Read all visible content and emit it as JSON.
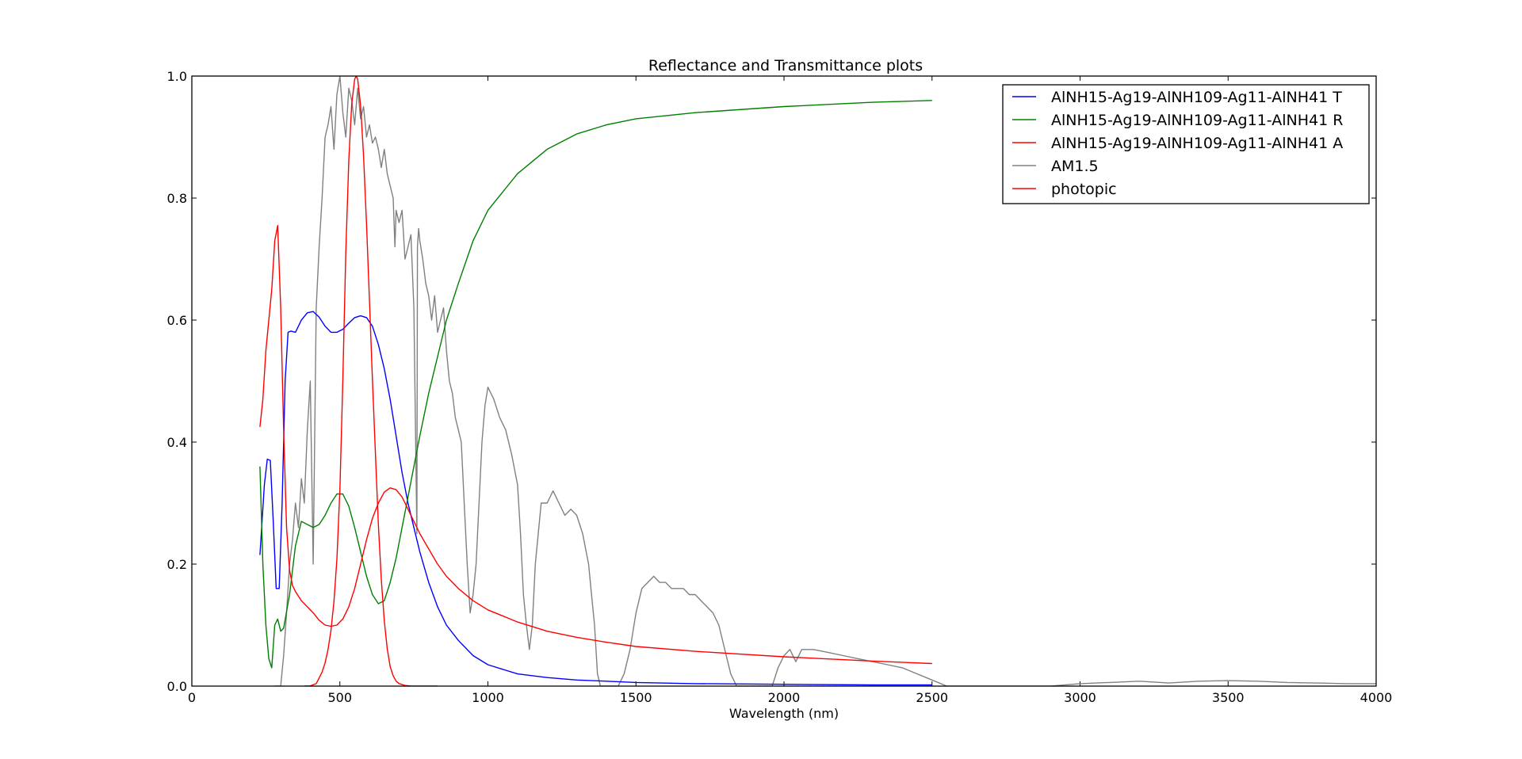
{
  "chart_data": {
    "type": "line",
    "title": "Reflectance and Transmittance plots",
    "xlabel": "Wavelength (nm)",
    "ylabel": "",
    "xlim": [
      0,
      4000
    ],
    "ylim": [
      0,
      1
    ],
    "xticks": [
      "0",
      "500",
      "1000",
      "1500",
      "2000",
      "2500",
      "3000",
      "3500",
      "4000"
    ],
    "yticks": [
      "0.0",
      "0.2",
      "0.4",
      "0.6",
      "0.8",
      "1.0"
    ],
    "grid": false,
    "legend_position": "top-right",
    "series": [
      {
        "name": "AlNH15-Ag19-AlNH109-Ag11-AlNH41 T",
        "color": "#0000ff",
        "x": [
          230,
          245,
          255,
          265,
          275,
          285,
          295,
          305,
          315,
          325,
          335,
          350,
          370,
          390,
          410,
          430,
          450,
          470,
          490,
          510,
          530,
          550,
          570,
          590,
          610,
          630,
          650,
          670,
          690,
          710,
          730,
          750,
          770,
          800,
          830,
          860,
          900,
          950,
          1000,
          1100,
          1200,
          1300,
          1400,
          1500,
          1700,
          2000,
          2300,
          2500
        ],
        "y": [
          0.215,
          0.33,
          0.372,
          0.37,
          0.27,
          0.16,
          0.16,
          0.3,
          0.5,
          0.58,
          0.582,
          0.58,
          0.6,
          0.612,
          0.614,
          0.605,
          0.59,
          0.58,
          0.58,
          0.585,
          0.595,
          0.604,
          0.607,
          0.604,
          0.59,
          0.56,
          0.52,
          0.47,
          0.41,
          0.35,
          0.3,
          0.26,
          0.22,
          0.17,
          0.13,
          0.1,
          0.075,
          0.05,
          0.035,
          0.02,
          0.014,
          0.01,
          0.008,
          0.006,
          0.004,
          0.003,
          0.002,
          0.002
        ]
      },
      {
        "name": "AlNH15-Ag19-AlNH109-Ag11-AlNH41 R",
        "color": "#008000",
        "x": [
          230,
          240,
          250,
          260,
          270,
          280,
          290,
          300,
          310,
          330,
          350,
          370,
          390,
          410,
          430,
          450,
          470,
          490,
          510,
          530,
          550,
          570,
          590,
          610,
          630,
          650,
          670,
          690,
          710,
          730,
          750,
          770,
          800,
          830,
          860,
          900,
          950,
          1000,
          1100,
          1200,
          1300,
          1400,
          1500,
          1700,
          2000,
          2300,
          2500
        ],
        "y": [
          0.36,
          0.2,
          0.1,
          0.045,
          0.03,
          0.1,
          0.11,
          0.09,
          0.095,
          0.15,
          0.23,
          0.27,
          0.265,
          0.26,
          0.265,
          0.28,
          0.3,
          0.315,
          0.315,
          0.295,
          0.26,
          0.22,
          0.18,
          0.15,
          0.135,
          0.14,
          0.17,
          0.21,
          0.26,
          0.31,
          0.36,
          0.41,
          0.48,
          0.54,
          0.6,
          0.66,
          0.73,
          0.78,
          0.84,
          0.88,
          0.905,
          0.92,
          0.93,
          0.94,
          0.95,
          0.957,
          0.96
        ]
      },
      {
        "name": "AlNH15-Ag19-AlNH109-Ag11-AlNH41 A",
        "color": "#ff0000",
        "x": [
          230,
          240,
          250,
          260,
          270,
          280,
          290,
          300,
          310,
          320,
          330,
          340,
          350,
          370,
          390,
          410,
          430,
          450,
          470,
          490,
          510,
          530,
          550,
          570,
          590,
          610,
          630,
          650,
          670,
          690,
          710,
          730,
          750,
          770,
          800,
          830,
          860,
          900,
          950,
          1000,
          1100,
          1200,
          1300,
          1400,
          1500,
          1700,
          2000,
          2300,
          2500
        ],
        "y": [
          0.425,
          0.47,
          0.55,
          0.6,
          0.65,
          0.73,
          0.755,
          0.62,
          0.42,
          0.26,
          0.19,
          0.165,
          0.155,
          0.14,
          0.13,
          0.12,
          0.108,
          0.1,
          0.098,
          0.1,
          0.11,
          0.13,
          0.16,
          0.2,
          0.24,
          0.275,
          0.3,
          0.318,
          0.325,
          0.322,
          0.31,
          0.29,
          0.27,
          0.25,
          0.225,
          0.2,
          0.18,
          0.16,
          0.14,
          0.125,
          0.105,
          0.09,
          0.08,
          0.072,
          0.065,
          0.057,
          0.048,
          0.041,
          0.037
        ]
      },
      {
        "name": "AM1.5",
        "color": "#808080",
        "x": [
          280,
          300,
          310,
          320,
          330,
          340,
          350,
          360,
          370,
          380,
          390,
          400,
          410,
          420,
          430,
          440,
          450,
          460,
          470,
          480,
          490,
          500,
          510,
          520,
          530,
          540,
          550,
          560,
          570,
          580,
          590,
          600,
          610,
          620,
          630,
          640,
          650,
          660,
          670,
          680,
          686,
          690,
          700,
          710,
          720,
          730,
          740,
          750,
          760,
          762,
          766,
          770,
          780,
          790,
          800,
          810,
          820,
          830,
          840,
          850,
          860,
          870,
          880,
          890,
          900,
          910,
          920,
          930,
          940,
          950,
          960,
          970,
          980,
          990,
          1000,
          1020,
          1040,
          1060,
          1080,
          1100,
          1110,
          1120,
          1130,
          1140,
          1150,
          1160,
          1170,
          1180,
          1200,
          1220,
          1240,
          1260,
          1280,
          1300,
          1320,
          1340,
          1350,
          1360,
          1370,
          1380,
          1400,
          1420,
          1440,
          1460,
          1480,
          1500,
          1520,
          1540,
          1560,
          1580,
          1600,
          1620,
          1640,
          1660,
          1680,
          1700,
          1720,
          1740,
          1760,
          1780,
          1800,
          1820,
          1840,
          1860,
          1880,
          1900,
          1920,
          1940,
          1960,
          1980,
          2000,
          2020,
          2040,
          2060,
          2080,
          2100,
          2150,
          2200,
          2250,
          2300,
          2350,
          2400,
          2450,
          2500,
          2550,
          2600,
          2700,
          2800,
          2900,
          3000,
          3100,
          3200,
          3300,
          3400,
          3500,
          3600,
          3700,
          3800,
          3900,
          4000
        ],
        "y": [
          0.0,
          0.0,
          0.05,
          0.12,
          0.2,
          0.24,
          0.3,
          0.26,
          0.34,
          0.3,
          0.42,
          0.5,
          0.2,
          0.62,
          0.72,
          0.8,
          0.9,
          0.92,
          0.95,
          0.88,
          0.97,
          1.0,
          0.94,
          0.9,
          0.98,
          0.96,
          0.92,
          0.98,
          0.93,
          0.95,
          0.9,
          0.92,
          0.89,
          0.9,
          0.88,
          0.85,
          0.88,
          0.84,
          0.82,
          0.8,
          0.72,
          0.78,
          0.76,
          0.78,
          0.7,
          0.72,
          0.74,
          0.62,
          0.25,
          0.72,
          0.75,
          0.73,
          0.7,
          0.66,
          0.64,
          0.6,
          0.64,
          0.58,
          0.6,
          0.62,
          0.55,
          0.5,
          0.48,
          0.44,
          0.42,
          0.4,
          0.3,
          0.2,
          0.12,
          0.15,
          0.2,
          0.3,
          0.4,
          0.46,
          0.49,
          0.47,
          0.44,
          0.42,
          0.38,
          0.33,
          0.25,
          0.15,
          0.1,
          0.06,
          0.1,
          0.2,
          0.25,
          0.3,
          0.3,
          0.32,
          0.3,
          0.28,
          0.29,
          0.28,
          0.25,
          0.2,
          0.15,
          0.1,
          0.02,
          0.0,
          0.0,
          0.0,
          0.0,
          0.02,
          0.06,
          0.12,
          0.16,
          0.17,
          0.18,
          0.17,
          0.17,
          0.16,
          0.16,
          0.16,
          0.15,
          0.15,
          0.14,
          0.13,
          0.12,
          0.1,
          0.06,
          0.02,
          0.0,
          0.0,
          0.0,
          0.0,
          0.0,
          0.0,
          0.0,
          0.03,
          0.05,
          0.06,
          0.04,
          0.06,
          0.06,
          0.06,
          0.055,
          0.05,
          0.045,
          0.04,
          0.035,
          0.03,
          0.02,
          0.01,
          0.0,
          0.0,
          0.0,
          0.0,
          0.0,
          0.004,
          0.006,
          0.008,
          0.005,
          0.008,
          0.009,
          0.008,
          0.006,
          0.005,
          0.004,
          0.004
        ]
      },
      {
        "name": "photopic",
        "color": "#ff0000",
        "x": [
          380,
          400,
          420,
          440,
          450,
          460,
          470,
          480,
          490,
          500,
          510,
          520,
          530,
          540,
          550,
          555,
          560,
          570,
          580,
          590,
          600,
          610,
          620,
          630,
          640,
          650,
          660,
          670,
          680,
          690,
          700,
          720,
          740,
          760,
          780,
          800,
          830
        ],
        "y": [
          0.0,
          0.0004,
          0.004,
          0.023,
          0.038,
          0.06,
          0.091,
          0.139,
          0.208,
          0.323,
          0.503,
          0.71,
          0.862,
          0.954,
          0.995,
          1.0,
          0.995,
          0.952,
          0.87,
          0.757,
          0.631,
          0.503,
          0.381,
          0.265,
          0.175,
          0.107,
          0.061,
          0.032,
          0.017,
          0.0082,
          0.0041,
          0.001,
          0.0002,
          0.0001,
          0.0,
          0.0,
          0.0
        ]
      }
    ]
  }
}
